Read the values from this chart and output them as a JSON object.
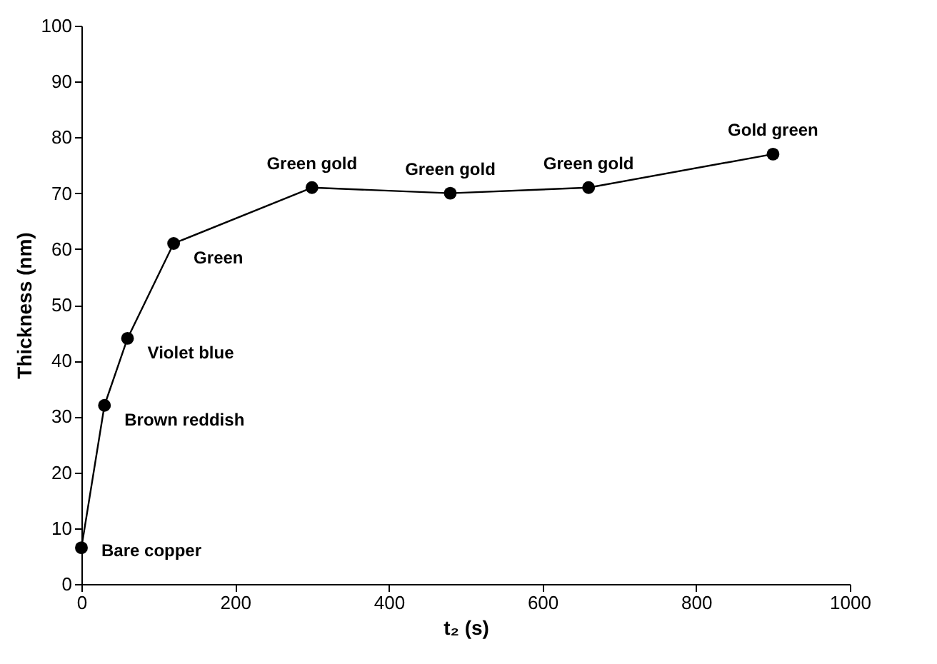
{
  "chart_data": {
    "type": "line",
    "xlabel": "t₂ (s)",
    "ylabel": "Thickness (nm)",
    "x": [
      0,
      30,
      60,
      120,
      300,
      480,
      660,
      900
    ],
    "series": [
      {
        "color": "#000000",
        "values": [
          6.5,
          32,
          44,
          61,
          71,
          70,
          71,
          77
        ]
      }
    ],
    "xlim": [
      0,
      1000
    ],
    "xticks": [
      0,
      200,
      400,
      600,
      800,
      1000
    ],
    "ylim": [
      0,
      100
    ],
    "yticks": [
      0,
      10,
      20,
      30,
      40,
      50,
      60,
      70,
      80,
      90,
      100
    ],
    "grid": false,
    "marker": "circle",
    "line_style": "solid",
    "annotations": [
      {
        "text": "Bare copper",
        "x": 0,
        "y": 6.5
      },
      {
        "text": "Brown reddish",
        "x": 30,
        "y": 32
      },
      {
        "text": "Violet blue",
        "x": 60,
        "y": 44
      },
      {
        "text": "Green",
        "x": 120,
        "y": 61
      },
      {
        "text": "Green gold",
        "x": 300,
        "y": 71
      },
      {
        "text": "Green gold",
        "x": 480,
        "y": 70
      },
      {
        "text": "Green gold",
        "x": 660,
        "y": 71
      },
      {
        "text": "Gold green",
        "x": 900,
        "y": 77
      }
    ]
  }
}
